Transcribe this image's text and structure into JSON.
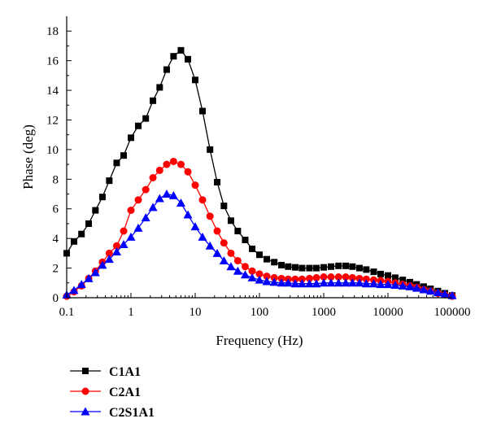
{
  "chart_data": {
    "type": "line",
    "xlabel": "Frequency (Hz)",
    "ylabel": "Phase (deg)",
    "xscale": "log",
    "xlim": [
      0.1,
      100000
    ],
    "ylim": [
      0,
      19
    ],
    "xticks": [
      0.1,
      1,
      10,
      100,
      1000,
      10000,
      100000
    ],
    "xtick_labels": [
      "0.1",
      "1",
      "10",
      "100",
      "1000",
      "10000",
      "100000"
    ],
    "yticks": [
      0,
      2,
      4,
      6,
      8,
      10,
      12,
      14,
      16,
      18
    ],
    "ytick_labels": [
      "0",
      "2",
      "4",
      "6",
      "8",
      "10",
      "12",
      "14",
      "16",
      "18"
    ],
    "legend_position": "bottom-left",
    "series": [
      {
        "name": "C1A1",
        "color": "#000000",
        "marker": "square",
        "points": [
          [
            0.1,
            3.0
          ],
          [
            0.13,
            3.8
          ],
          [
            0.17,
            4.3
          ],
          [
            0.22,
            5.0
          ],
          [
            0.28,
            5.9
          ],
          [
            0.36,
            6.8
          ],
          [
            0.46,
            7.9
          ],
          [
            0.6,
            9.1
          ],
          [
            0.77,
            9.6
          ],
          [
            1.0,
            10.8
          ],
          [
            1.3,
            11.6
          ],
          [
            1.7,
            12.1
          ],
          [
            2.2,
            13.3
          ],
          [
            2.8,
            14.2
          ],
          [
            3.6,
            15.4
          ],
          [
            4.6,
            16.3
          ],
          [
            6.0,
            16.7
          ],
          [
            7.7,
            16.1
          ],
          [
            10,
            14.7
          ],
          [
            13,
            12.6
          ],
          [
            17,
            10.0
          ],
          [
            22,
            7.8
          ],
          [
            28,
            6.2
          ],
          [
            36,
            5.2
          ],
          [
            46,
            4.5
          ],
          [
            60,
            3.9
          ],
          [
            77,
            3.3
          ],
          [
            100,
            2.9
          ],
          [
            130,
            2.6
          ],
          [
            170,
            2.4
          ],
          [
            220,
            2.2
          ],
          [
            280,
            2.1
          ],
          [
            360,
            2.05
          ],
          [
            460,
            2.0
          ],
          [
            600,
            2.0
          ],
          [
            770,
            2.0
          ],
          [
            1000,
            2.05
          ],
          [
            1300,
            2.1
          ],
          [
            1700,
            2.15
          ],
          [
            2200,
            2.15
          ],
          [
            2800,
            2.1
          ],
          [
            3600,
            2.0
          ],
          [
            4600,
            1.9
          ],
          [
            6000,
            1.75
          ],
          [
            7700,
            1.6
          ],
          [
            10000,
            1.5
          ],
          [
            13000,
            1.35
          ],
          [
            17000,
            1.2
          ],
          [
            22000,
            1.05
          ],
          [
            28000,
            0.9
          ],
          [
            36000,
            0.75
          ],
          [
            46000,
            0.6
          ],
          [
            60000,
            0.45
          ],
          [
            77000,
            0.3
          ],
          [
            100000,
            0.15
          ]
        ]
      },
      {
        "name": "C2A1",
        "color": "#ff0000",
        "marker": "circle",
        "points": [
          [
            0.1,
            0.1
          ],
          [
            0.13,
            0.4
          ],
          [
            0.17,
            0.8
          ],
          [
            0.22,
            1.3
          ],
          [
            0.28,
            1.8
          ],
          [
            0.36,
            2.4
          ],
          [
            0.46,
            3.0
          ],
          [
            0.6,
            3.5
          ],
          [
            0.77,
            4.5
          ],
          [
            1.0,
            5.9
          ],
          [
            1.3,
            6.6
          ],
          [
            1.7,
            7.3
          ],
          [
            2.2,
            8.1
          ],
          [
            2.8,
            8.6
          ],
          [
            3.6,
            9.0
          ],
          [
            4.6,
            9.2
          ],
          [
            6.0,
            9.0
          ],
          [
            7.7,
            8.5
          ],
          [
            10,
            7.6
          ],
          [
            13,
            6.6
          ],
          [
            17,
            5.5
          ],
          [
            22,
            4.5
          ],
          [
            28,
            3.7
          ],
          [
            36,
            3.0
          ],
          [
            46,
            2.5
          ],
          [
            60,
            2.1
          ],
          [
            77,
            1.8
          ],
          [
            100,
            1.6
          ],
          [
            130,
            1.45
          ],
          [
            170,
            1.35
          ],
          [
            220,
            1.3
          ],
          [
            280,
            1.25
          ],
          [
            360,
            1.25
          ],
          [
            460,
            1.25
          ],
          [
            600,
            1.3
          ],
          [
            770,
            1.35
          ],
          [
            1000,
            1.4
          ],
          [
            1300,
            1.4
          ],
          [
            1700,
            1.4
          ],
          [
            2200,
            1.4
          ],
          [
            2800,
            1.35
          ],
          [
            3600,
            1.3
          ],
          [
            4600,
            1.25
          ],
          [
            6000,
            1.2
          ],
          [
            7700,
            1.15
          ],
          [
            10000,
            1.1
          ],
          [
            13000,
            1.0
          ],
          [
            17000,
            0.9
          ],
          [
            22000,
            0.8
          ],
          [
            28000,
            0.7
          ],
          [
            36000,
            0.55
          ],
          [
            46000,
            0.45
          ],
          [
            60000,
            0.3
          ],
          [
            77000,
            0.2
          ],
          [
            100000,
            0.1
          ]
        ]
      },
      {
        "name": "C2S1A1",
        "color": "#0000ff",
        "marker": "triangle",
        "points": [
          [
            0.1,
            0.2
          ],
          [
            0.13,
            0.5
          ],
          [
            0.17,
            0.9
          ],
          [
            0.22,
            1.3
          ],
          [
            0.28,
            1.7
          ],
          [
            0.36,
            2.2
          ],
          [
            0.46,
            2.6
          ],
          [
            0.6,
            3.1
          ],
          [
            0.77,
            3.6
          ],
          [
            1.0,
            4.1
          ],
          [
            1.3,
            4.7
          ],
          [
            1.7,
            5.4
          ],
          [
            2.2,
            6.1
          ],
          [
            2.8,
            6.7
          ],
          [
            3.6,
            7.0
          ],
          [
            4.6,
            6.9
          ],
          [
            6.0,
            6.4
          ],
          [
            7.7,
            5.6
          ],
          [
            10,
            4.8
          ],
          [
            13,
            4.1
          ],
          [
            17,
            3.5
          ],
          [
            22,
            3.0
          ],
          [
            28,
            2.5
          ],
          [
            36,
            2.1
          ],
          [
            46,
            1.8
          ],
          [
            60,
            1.55
          ],
          [
            77,
            1.35
          ],
          [
            100,
            1.2
          ],
          [
            130,
            1.1
          ],
          [
            170,
            1.05
          ],
          [
            220,
            1.0
          ],
          [
            280,
            1.0
          ],
          [
            360,
            0.95
          ],
          [
            460,
            0.95
          ],
          [
            600,
            0.95
          ],
          [
            770,
            0.95
          ],
          [
            1000,
            1.0
          ],
          [
            1300,
            1.0
          ],
          [
            1700,
            1.0
          ],
          [
            2200,
            1.0
          ],
          [
            2800,
            1.0
          ],
          [
            3600,
            1.0
          ],
          [
            4600,
            0.95
          ],
          [
            6000,
            0.95
          ],
          [
            7700,
            0.9
          ],
          [
            10000,
            0.9
          ],
          [
            13000,
            0.85
          ],
          [
            17000,
            0.8
          ],
          [
            22000,
            0.75
          ],
          [
            28000,
            0.65
          ],
          [
            36000,
            0.55
          ],
          [
            46000,
            0.45
          ],
          [
            60000,
            0.35
          ],
          [
            77000,
            0.25
          ],
          [
            100000,
            0.15
          ]
        ]
      }
    ]
  }
}
